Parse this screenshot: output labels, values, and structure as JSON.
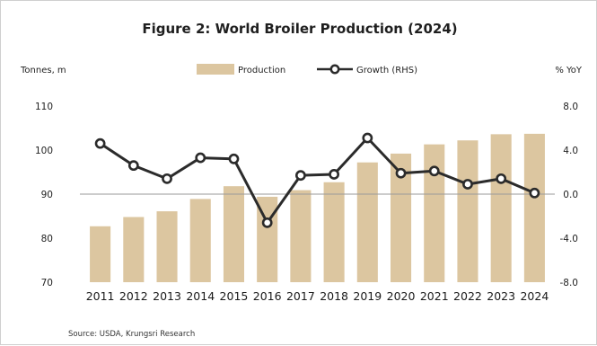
{
  "chart_data": {
    "type": "bar",
    "title": "Figure 2: World Broiler Production (2024)",
    "ylabel": "Tonnes, m",
    "y2label": "% YoY",
    "categories": [
      "2011",
      "2012",
      "2013",
      "2014",
      "2015",
      "2016",
      "2017",
      "2018",
      "2019",
      "2020",
      "2021",
      "2022",
      "2023",
      "2024"
    ],
    "ylim": [
      70,
      110
    ],
    "yticks": [
      70,
      80,
      90,
      100,
      110
    ],
    "y2lim": [
      -8.0,
      8.0
    ],
    "y2ticks": [
      "-8.0",
      "-4.0",
      "0.0",
      "4.0",
      "8.0"
    ],
    "series": [
      {
        "name": "Production",
        "kind": "bar",
        "axis": "left",
        "color": "#dcc6a0",
        "values": [
          82.7,
          84.8,
          86.1,
          88.9,
          91.8,
          89.4,
          90.9,
          92.7,
          97.2,
          99.2,
          101.3,
          102.2,
          103.6,
          103.7
        ]
      },
      {
        "name": "Growth (RHS)",
        "kind": "line",
        "axis": "right",
        "color": "#2b2b2b",
        "values": [
          4.6,
          2.6,
          1.4,
          3.3,
          3.2,
          -2.6,
          1.7,
          1.8,
          5.1,
          1.9,
          2.1,
          0.9,
          1.4,
          0.1
        ]
      }
    ],
    "legend": "top-center",
    "grid": false,
    "source": "Source: USDA, Krungsri Research"
  }
}
